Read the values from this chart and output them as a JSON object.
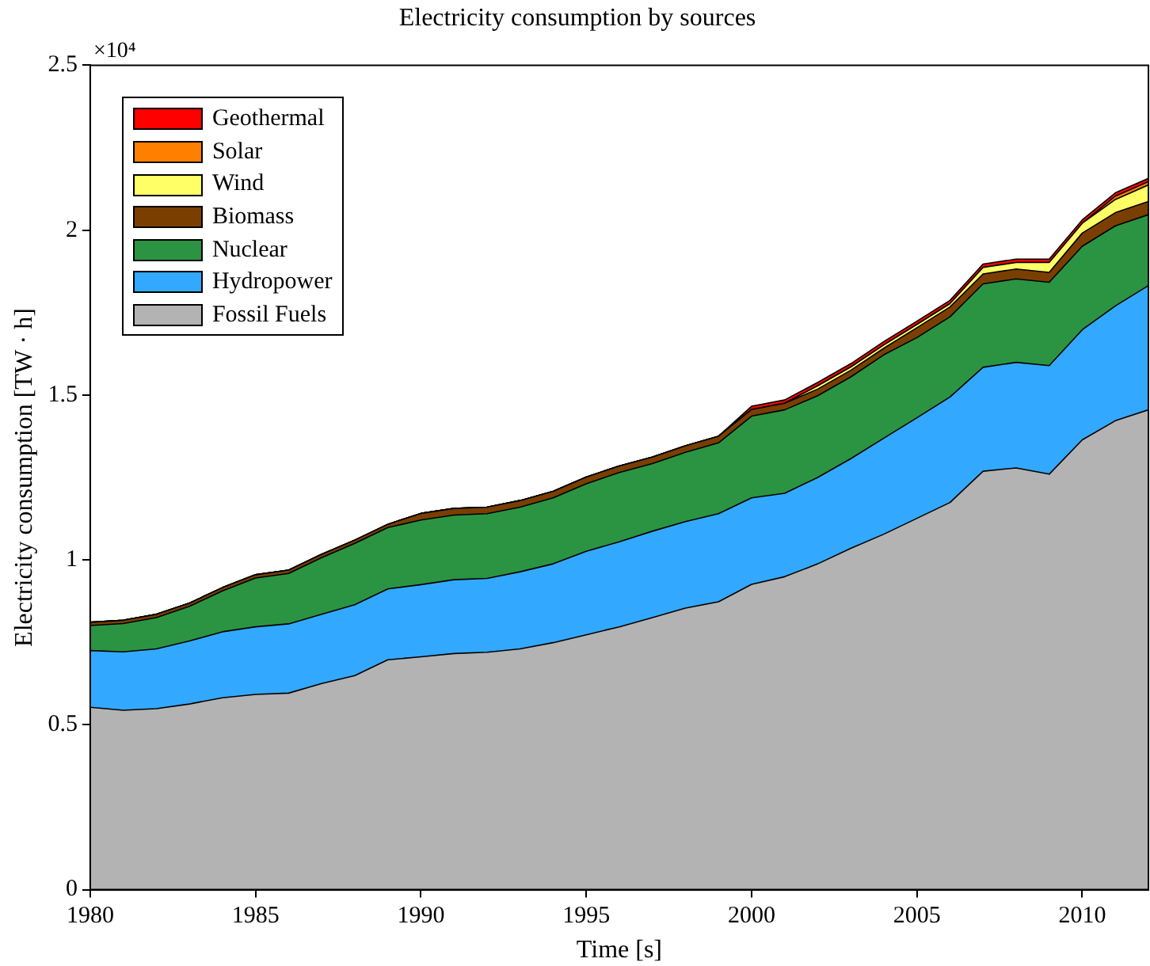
{
  "chart_data": {
    "type": "area",
    "title": "Electricity consumption by sources",
    "xlabel": "Time [s]",
    "ylabel": "Electricity consumption [TW · h]",
    "annotations": [
      "×10⁴"
    ],
    "stacked": true,
    "legend": "top left",
    "x": [
      1980,
      1981,
      1982,
      1983,
      1984,
      1985,
      1986,
      1987,
      1988,
      1989,
      1990,
      1991,
      1992,
      1993,
      1994,
      1995,
      1996,
      1997,
      1998,
      1999,
      2000,
      2001,
      2002,
      2003,
      2004,
      2005,
      2006,
      2007,
      2008,
      2009,
      2010,
      2011,
      2012
    ],
    "xlim": [
      1980,
      2012
    ],
    "xticks": [
      1980,
      1985,
      1990,
      1995,
      2000,
      2005,
      2010
    ],
    "ylim": [
      0,
      2.5
    ],
    "yticks": [
      0,
      0.5,
      1,
      1.5,
      2,
      2.5
    ],
    "series": [
      {
        "name": "Fossil Fuels",
        "color": "#b3b3b3",
        "values": [
          0.553,
          0.544,
          0.549,
          0.563,
          0.582,
          0.592,
          0.596,
          0.625,
          0.649,
          0.697,
          0.706,
          0.716,
          0.72,
          0.73,
          0.749,
          0.773,
          0.797,
          0.825,
          0.854,
          0.873,
          0.926,
          0.949,
          0.988,
          1.035,
          1.078,
          1.126,
          1.174,
          1.269,
          1.279,
          1.26,
          1.364,
          1.422,
          1.455
        ]
      },
      {
        "name": "Hydropower",
        "color": "#33a8ff",
        "values": [
          0.172,
          0.177,
          0.181,
          0.191,
          0.2,
          0.205,
          0.21,
          0.21,
          0.215,
          0.215,
          0.219,
          0.224,
          0.224,
          0.234,
          0.239,
          0.253,
          0.258,
          0.262,
          0.262,
          0.267,
          0.262,
          0.253,
          0.262,
          0.272,
          0.291,
          0.305,
          0.32,
          0.315,
          0.32,
          0.329,
          0.334,
          0.348,
          0.377
        ]
      },
      {
        "name": "Nuclear",
        "color": "#2b9442",
        "values": [
          0.076,
          0.086,
          0.095,
          0.105,
          0.124,
          0.148,
          0.153,
          0.172,
          0.186,
          0.186,
          0.196,
          0.196,
          0.196,
          0.196,
          0.2,
          0.205,
          0.21,
          0.205,
          0.21,
          0.215,
          0.248,
          0.253,
          0.248,
          0.248,
          0.253,
          0.243,
          0.243,
          0.253,
          0.253,
          0.253,
          0.253,
          0.243,
          0.215
        ]
      },
      {
        "name": "Biomass",
        "color": "#7a3f00",
        "values": [
          0.01,
          0.01,
          0.01,
          0.01,
          0.01,
          0.01,
          0.01,
          0.01,
          0.01,
          0.01,
          0.02,
          0.02,
          0.02,
          0.02,
          0.02,
          0.02,
          0.02,
          0.02,
          0.02,
          0.02,
          0.02,
          0.02,
          0.02,
          0.02,
          0.02,
          0.03,
          0.03,
          0.03,
          0.03,
          0.03,
          0.04,
          0.04,
          0.04
        ]
      },
      {
        "name": "Wind",
        "color": "#ffff66",
        "values": [
          0,
          0,
          0,
          0,
          0,
          0,
          0,
          0,
          0,
          0,
          0,
          0,
          0,
          0,
          0,
          0,
          0,
          0,
          0,
          0,
          0,
          0,
          0.01,
          0.01,
          0.01,
          0.01,
          0.01,
          0.02,
          0.02,
          0.03,
          0.03,
          0.04,
          0.05
        ]
      },
      {
        "name": "Solar",
        "color": "#ff8000",
        "values": [
          0,
          0,
          0,
          0,
          0,
          0,
          0,
          0,
          0,
          0,
          0,
          0,
          0,
          0,
          0,
          0,
          0,
          0,
          0,
          0,
          0,
          0,
          0,
          0,
          0,
          0,
          0,
          0,
          0,
          0,
          0,
          0.01,
          0.01
        ]
      },
      {
        "name": "Geothermal",
        "color": "#ff0000",
        "values": [
          0,
          0,
          0,
          0,
          0,
          0,
          0,
          0,
          0,
          0,
          0,
          0,
          0,
          0,
          0,
          0,
          0,
          0,
          0,
          0,
          0.01,
          0.01,
          0.01,
          0.01,
          0.01,
          0.01,
          0.01,
          0.01,
          0.01,
          0.01,
          0.01,
          0.01,
          0.01
        ]
      }
    ]
  }
}
